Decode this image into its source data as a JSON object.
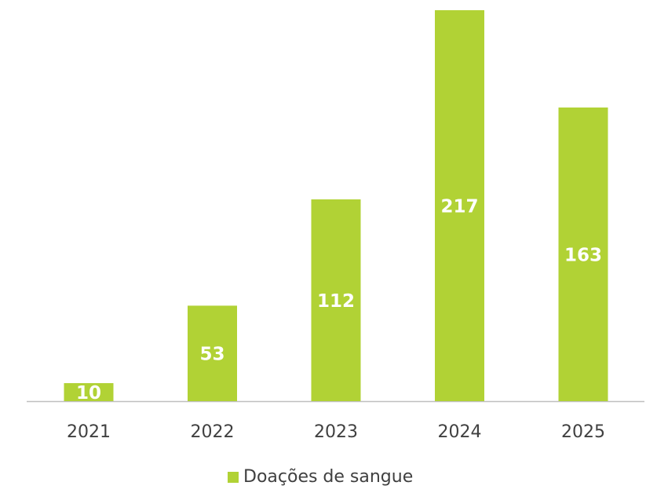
{
  "chart_data": {
    "type": "bar",
    "categories": [
      "2021",
      "2022",
      "2023",
      "2024",
      "2025"
    ],
    "series": [
      {
        "name": "Doações de sangue",
        "color": "#b1d235",
        "values": [
          10,
          53,
          112,
          217,
          163
        ]
      }
    ],
    "legend": "bottom"
  }
}
